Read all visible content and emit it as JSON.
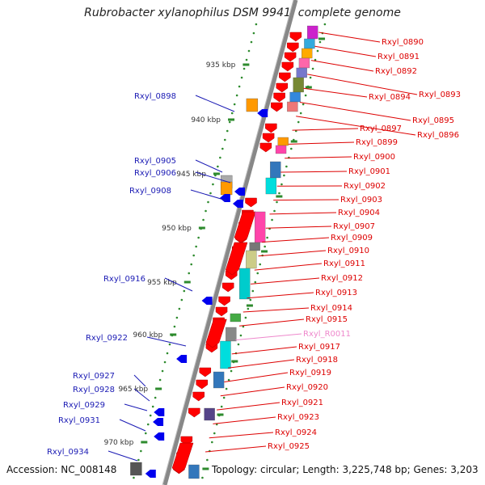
{
  "title": "Rubrobacter xylanophilus DSM 9941, complete genome",
  "footer": {
    "accession": "Accession: NC_008148",
    "summary": "Topology: circular; Length: 3,225,748 bp; Genes: 3,203"
  },
  "colors": {
    "background": "#ffffff",
    "backbone": "#888888",
    "scale_dots": "#2e8b2e",
    "left_labels": "#1a1ab4",
    "right_labels": "#dd0000",
    "rna_label": "#ee88cc",
    "forward_genes": "#ff0000",
    "reverse_genes": "#0000ee"
  },
  "scale_ticks": [
    "935 kbp",
    "940 kbp",
    "945 kbp",
    "950 kbp",
    "955 kbp",
    "960 kbp",
    "965 kbp",
    "970 kbp"
  ],
  "left_genes": [
    "Rxyl_0898",
    "Rxyl_0905",
    "Rxyl_0906",
    "Rxyl_0908",
    "Rxyl_0916",
    "Rxyl_0922",
    "Rxyl_0927",
    "Rxyl_0928",
    "Rxyl_0929",
    "Rxyl_0931",
    "Rxyl_0934"
  ],
  "right_genes": [
    "Rxyl_0890",
    "Rxyl_0891",
    "Rxyl_0892",
    "Rxyl_0893",
    "Rxyl_0894",
    "Rxyl_0895",
    "Rxyl_0896",
    "Rxyl_0897",
    "Rxyl_0899",
    "Rxyl_0900",
    "Rxyl_0901",
    "Rxyl_0902",
    "Rxyl_0903",
    "Rxyl_0904",
    "Rxyl_0907",
    "Rxyl_0909",
    "Rxyl_0910",
    "Rxyl_0911",
    "Rxyl_0912",
    "Rxyl_0913",
    "Rxyl_0914",
    "Rxyl_0915",
    "Rxyl_R0011",
    "Rxyl_0917",
    "Rxyl_0918",
    "Rxyl_0919",
    "Rxyl_0920",
    "Rxyl_0921",
    "Rxyl_0923",
    "Rxyl_0924",
    "Rxyl_0925"
  ],
  "rna_genes": [
    "Rxyl_R0011"
  ]
}
